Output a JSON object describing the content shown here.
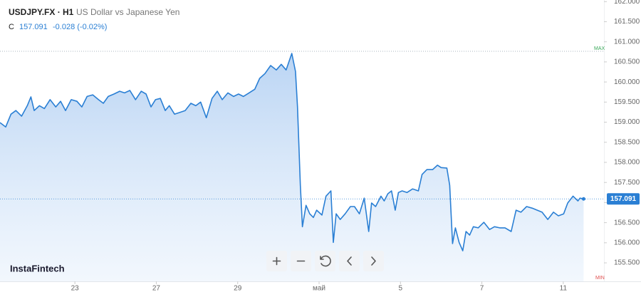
{
  "chart_data": {
    "type": "area",
    "title": "USDJPY.FX · H1",
    "subtitle": "US Dollar vs Japanese Yen",
    "close_label": "C",
    "last_price": 157.091,
    "change_text": "-0.028 (-0.02%)",
    "brand": "InstaFintech",
    "max_label": "MAX",
    "min_label": "MIN",
    "color": "#2a7fd4",
    "x": [
      0.16,
      0.3,
      0.43,
      0.55,
      0.69,
      0.83,
      0.92,
      1.0,
      1.13,
      1.25,
      1.39,
      1.53,
      1.65,
      1.77,
      1.91,
      2.05,
      2.17,
      2.3,
      2.44,
      2.58,
      2.7,
      2.82,
      2.96,
      3.1,
      3.22,
      3.35,
      3.49,
      3.63,
      3.75,
      3.87,
      3.98,
      4.1,
      4.22,
      4.32,
      4.45,
      4.57,
      4.71,
      4.85,
      4.97,
      5.09,
      5.23,
      5.37,
      5.5,
      5.62,
      5.76,
      5.9,
      6.02,
      6.14,
      6.28,
      6.42,
      6.54,
      6.67,
      6.81,
      6.95,
      7.07,
      7.19,
      7.33,
      7.42,
      7.47,
      7.54,
      7.59,
      7.68,
      7.77,
      7.86,
      7.94,
      8.07,
      8.17,
      8.29,
      8.35,
      8.42,
      8.52,
      8.64,
      8.77,
      8.87,
      8.99,
      9.11,
      9.22,
      9.29,
      9.39,
      9.52,
      9.6,
      9.69,
      9.78,
      9.87,
      9.95,
      10.04,
      10.16,
      10.3,
      10.44,
      10.53,
      10.65,
      10.79,
      10.91,
      11.0,
      11.14,
      11.21,
      11.28,
      11.35,
      11.44,
      11.53,
      11.61,
      11.7,
      11.79,
      11.91,
      12.05,
      12.19,
      12.31,
      12.44,
      12.57,
      12.72,
      12.84,
      12.96,
      13.1,
      13.24,
      13.36,
      13.48,
      13.62,
      13.76,
      13.88,
      14.01,
      14.11,
      14.24,
      14.36,
      14.41,
      14.5
    ],
    "values": [
      158.99,
      158.88,
      159.2,
      159.29,
      159.15,
      159.41,
      159.63,
      159.29,
      159.41,
      159.34,
      159.56,
      159.38,
      159.52,
      159.29,
      159.56,
      159.52,
      159.38,
      159.64,
      159.68,
      159.56,
      159.47,
      159.64,
      159.7,
      159.77,
      159.73,
      159.79,
      159.56,
      159.77,
      159.7,
      159.38,
      159.56,
      159.59,
      159.29,
      159.41,
      159.2,
      159.24,
      159.29,
      159.47,
      159.41,
      159.5,
      159.11,
      159.59,
      159.77,
      159.56,
      159.73,
      159.64,
      159.7,
      159.64,
      159.73,
      159.82,
      160.09,
      160.21,
      160.41,
      160.3,
      160.44,
      160.3,
      160.71,
      160.26,
      159.38,
      157.43,
      156.4,
      156.93,
      156.72,
      156.63,
      156.81,
      156.69,
      157.16,
      157.29,
      156.01,
      156.72,
      156.58,
      156.72,
      156.9,
      156.9,
      156.72,
      157.11,
      156.28,
      156.99,
      156.9,
      157.16,
      157.04,
      157.22,
      157.29,
      156.81,
      157.25,
      157.29,
      157.25,
      157.34,
      157.29,
      157.7,
      157.82,
      157.82,
      157.93,
      157.87,
      157.86,
      157.43,
      155.98,
      156.37,
      156.01,
      155.8,
      156.28,
      156.19,
      156.4,
      156.37,
      156.51,
      156.33,
      156.4,
      156.37,
      156.37,
      156.28,
      156.81,
      156.76,
      156.9,
      156.86,
      156.81,
      156.76,
      156.58,
      156.76,
      156.67,
      156.72,
      156.99,
      157.16,
      157.04,
      157.11,
      157.091
    ],
    "xlim": [
      0.16,
      15
    ],
    "xticks": [
      {
        "value": 2,
        "label": "23"
      },
      {
        "value": 4,
        "label": "27"
      },
      {
        "value": 6,
        "label": "29"
      },
      {
        "value": 8,
        "label": "май"
      },
      {
        "value": 10,
        "label": "5"
      },
      {
        "value": 12,
        "label": "7"
      },
      {
        "value": 14,
        "label": "11"
      }
    ],
    "ylim": [
      155.04,
      162.04
    ],
    "yticks": [
      {
        "value": 155.5,
        "label": "155.500"
      },
      {
        "value": 156,
        "label": "156.000"
      },
      {
        "value": 156.5,
        "label": "156.500"
      },
      {
        "value": 157,
        "label": "157.000"
      },
      {
        "value": 157.5,
        "label": "157.500"
      },
      {
        "value": 158,
        "label": "158.000"
      },
      {
        "value": 158.5,
        "label": "158.500"
      },
      {
        "value": 159,
        "label": "159.000"
      },
      {
        "value": 159.5,
        "label": "159.500"
      },
      {
        "value": 160,
        "label": "160.000"
      },
      {
        "value": 160.5,
        "label": "160.500"
      },
      {
        "value": 161,
        "label": "161.000"
      },
      {
        "value": 161.5,
        "label": "161.500"
      },
      {
        "value": 162,
        "label": "162.000"
      }
    ]
  }
}
